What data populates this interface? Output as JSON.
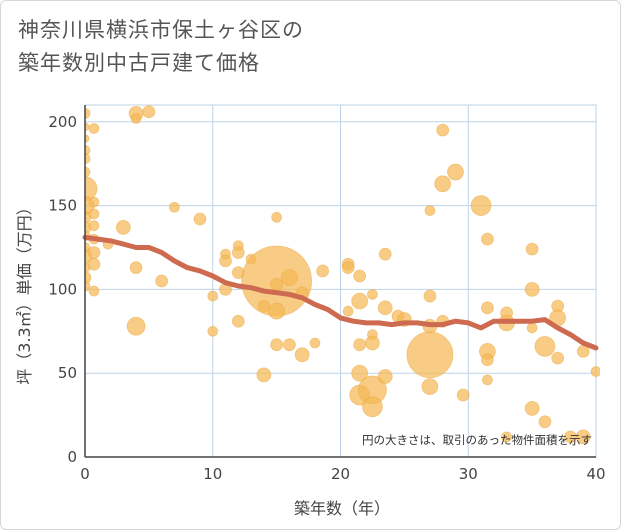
{
  "chart_data": {
    "type": "scatter",
    "title_lines": [
      "神奈川県横浜市保土ヶ谷区の",
      "築年数別中古戸建て価格"
    ],
    "xlabel": "築年数（年）",
    "ylabel": "坪（3.3㎡）単価（万円）",
    "xlim": [
      0,
      40
    ],
    "ylim": [
      0,
      210
    ],
    "x_ticks": [
      0,
      10,
      20,
      30,
      40
    ],
    "y_ticks": [
      0,
      50,
      100,
      150,
      200
    ],
    "x_tick_labels": [
      "0",
      "10",
      "20",
      "30",
      "40"
    ],
    "y_tick_labels": [
      "0",
      "50",
      "100",
      "150",
      "200"
    ],
    "grid": true,
    "note": "円の大きさは、取引のあった物件面積を示す",
    "colors": {
      "bubble": "#f5b955",
      "bubble_stroke": "#e9a63a",
      "trend": "#cd6a50",
      "grid": "#bfd3e6",
      "axis": "#444444"
    },
    "series": [
      {
        "name": "取引",
        "points": [
          {
            "x": 0,
            "y": 205,
            "size": 5
          },
          {
            "x": 0,
            "y": 197,
            "size": 4
          },
          {
            "x": 0,
            "y": 190,
            "size": 4
          },
          {
            "x": 0,
            "y": 183,
            "size": 5
          },
          {
            "x": 0,
            "y": 178,
            "size": 5
          },
          {
            "x": 0,
            "y": 170,
            "size": 5
          },
          {
            "x": 0,
            "y": 160,
            "size": 12
          },
          {
            "x": 0,
            "y": 150,
            "size": 9
          },
          {
            "x": 0,
            "y": 143,
            "size": 6
          },
          {
            "x": 0,
            "y": 137,
            "size": 6
          },
          {
            "x": 0,
            "y": 132,
            "size": 5
          },
          {
            "x": 0,
            "y": 125,
            "size": 5
          },
          {
            "x": 0,
            "y": 120,
            "size": 7
          },
          {
            "x": 0,
            "y": 113,
            "size": 5
          },
          {
            "x": 0,
            "y": 107,
            "size": 6
          },
          {
            "x": 0,
            "y": 102,
            "size": 5
          },
          {
            "x": 0.7,
            "y": 196,
            "size": 5
          },
          {
            "x": 0.7,
            "y": 152,
            "size": 5
          },
          {
            "x": 0.7,
            "y": 145,
            "size": 5
          },
          {
            "x": 0.7,
            "y": 138,
            "size": 5
          },
          {
            "x": 0.7,
            "y": 130,
            "size": 5
          },
          {
            "x": 0.7,
            "y": 122,
            "size": 6
          },
          {
            "x": 0.7,
            "y": 115,
            "size": 6
          },
          {
            "x": 0.7,
            "y": 99,
            "size": 5
          },
          {
            "x": 1.8,
            "y": 127,
            "size": 5
          },
          {
            "x": 3,
            "y": 137,
            "size": 7
          },
          {
            "x": 4,
            "y": 205,
            "size": 7
          },
          {
            "x": 4,
            "y": 202,
            "size": 5
          },
          {
            "x": 5,
            "y": 206,
            "size": 6
          },
          {
            "x": 4,
            "y": 113,
            "size": 6
          },
          {
            "x": 4,
            "y": 78,
            "size": 9
          },
          {
            "x": 6,
            "y": 105,
            "size": 6
          },
          {
            "x": 7,
            "y": 149,
            "size": 5
          },
          {
            "x": 9,
            "y": 142,
            "size": 6
          },
          {
            "x": 10,
            "y": 96,
            "size": 5
          },
          {
            "x": 10,
            "y": 75,
            "size": 5
          },
          {
            "x": 11,
            "y": 121,
            "size": 5
          },
          {
            "x": 11,
            "y": 117,
            "size": 6
          },
          {
            "x": 11,
            "y": 100,
            "size": 6
          },
          {
            "x": 12,
            "y": 126,
            "size": 5
          },
          {
            "x": 12,
            "y": 122,
            "size": 6
          },
          {
            "x": 12,
            "y": 110,
            "size": 6
          },
          {
            "x": 12,
            "y": 81,
            "size": 6
          },
          {
            "x": 13,
            "y": 118,
            "size": 5
          },
          {
            "x": 14,
            "y": 90,
            "size": 6
          },
          {
            "x": 14,
            "y": 49,
            "size": 7
          },
          {
            "x": 15,
            "y": 143,
            "size": 5
          },
          {
            "x": 15,
            "y": 105,
            "size": 35
          },
          {
            "x": 15,
            "y": 103,
            "size": 6
          },
          {
            "x": 15,
            "y": 87,
            "size": 8
          },
          {
            "x": 15,
            "y": 67,
            "size": 6
          },
          {
            "x": 16,
            "y": 107,
            "size": 8
          },
          {
            "x": 16,
            "y": 67,
            "size": 6
          },
          {
            "x": 17,
            "y": 98,
            "size": 6
          },
          {
            "x": 17,
            "y": 61,
            "size": 7
          },
          {
            "x": 18,
            "y": 68,
            "size": 5
          },
          {
            "x": 18.6,
            "y": 111,
            "size": 6
          },
          {
            "x": 20.6,
            "y": 115,
            "size": 6
          },
          {
            "x": 20.6,
            "y": 113,
            "size": 6
          },
          {
            "x": 20.6,
            "y": 87,
            "size": 5
          },
          {
            "x": 21.5,
            "y": 108,
            "size": 6
          },
          {
            "x": 21.5,
            "y": 93,
            "size": 8
          },
          {
            "x": 21.5,
            "y": 67,
            "size": 6
          },
          {
            "x": 21.5,
            "y": 50,
            "size": 8
          },
          {
            "x": 21.5,
            "y": 37,
            "size": 10
          },
          {
            "x": 22.5,
            "y": 97,
            "size": 5
          },
          {
            "x": 22.5,
            "y": 73,
            "size": 5
          },
          {
            "x": 22.5,
            "y": 68,
            "size": 7
          },
          {
            "x": 22.5,
            "y": 40,
            "size": 14
          },
          {
            "x": 22.5,
            "y": 30,
            "size": 10
          },
          {
            "x": 23.5,
            "y": 121,
            "size": 6
          },
          {
            "x": 23.5,
            "y": 89,
            "size": 7
          },
          {
            "x": 23.5,
            "y": 48,
            "size": 7
          },
          {
            "x": 24.5,
            "y": 84,
            "size": 6
          },
          {
            "x": 25,
            "y": 82,
            "size": 7
          },
          {
            "x": 27,
            "y": 147,
            "size": 5
          },
          {
            "x": 27,
            "y": 96,
            "size": 6
          },
          {
            "x": 27,
            "y": 78,
            "size": 7
          },
          {
            "x": 27,
            "y": 61,
            "size": 23
          },
          {
            "x": 27,
            "y": 42,
            "size": 8
          },
          {
            "x": 28,
            "y": 195,
            "size": 6
          },
          {
            "x": 28,
            "y": 163,
            "size": 8
          },
          {
            "x": 28,
            "y": 81,
            "size": 6
          },
          {
            "x": 29,
            "y": 170,
            "size": 8
          },
          {
            "x": 29.6,
            "y": 37,
            "size": 6
          },
          {
            "x": 31,
            "y": 150,
            "size": 10
          },
          {
            "x": 31.5,
            "y": 130,
            "size": 6
          },
          {
            "x": 31.5,
            "y": 89,
            "size": 6
          },
          {
            "x": 31.5,
            "y": 63,
            "size": 8
          },
          {
            "x": 31.5,
            "y": 58,
            "size": 6
          },
          {
            "x": 31.5,
            "y": 46,
            "size": 5
          },
          {
            "x": 33,
            "y": 86,
            "size": 6
          },
          {
            "x": 33,
            "y": 80,
            "size": 8
          },
          {
            "x": 33,
            "y": 12,
            "size": 5
          },
          {
            "x": 35,
            "y": 124,
            "size": 6
          },
          {
            "x": 35,
            "y": 100,
            "size": 7
          },
          {
            "x": 35,
            "y": 77,
            "size": 5
          },
          {
            "x": 35,
            "y": 29,
            "size": 7
          },
          {
            "x": 36,
            "y": 66,
            "size": 10
          },
          {
            "x": 36,
            "y": 21,
            "size": 6
          },
          {
            "x": 37,
            "y": 90,
            "size": 6
          },
          {
            "x": 37,
            "y": 83,
            "size": 8
          },
          {
            "x": 37,
            "y": 59,
            "size": 6
          },
          {
            "x": 38,
            "y": 12,
            "size": 6
          },
          {
            "x": 39,
            "y": 63,
            "size": 6
          },
          {
            "x": 39,
            "y": 12,
            "size": 7
          },
          {
            "x": 40,
            "y": 51,
            "size": 5
          }
        ]
      },
      {
        "name": "平均",
        "line": [
          {
            "x": 0,
            "y": 131
          },
          {
            "x": 1,
            "y": 130
          },
          {
            "x": 2,
            "y": 129
          },
          {
            "x": 3,
            "y": 127
          },
          {
            "x": 4,
            "y": 125
          },
          {
            "x": 5,
            "y": 125
          },
          {
            "x": 6,
            "y": 122
          },
          {
            "x": 7,
            "y": 117
          },
          {
            "x": 8,
            "y": 113
          },
          {
            "x": 9,
            "y": 111
          },
          {
            "x": 10,
            "y": 108
          },
          {
            "x": 11,
            "y": 104
          },
          {
            "x": 12,
            "y": 102
          },
          {
            "x": 13,
            "y": 101
          },
          {
            "x": 14,
            "y": 99
          },
          {
            "x": 15,
            "y": 98
          },
          {
            "x": 16,
            "y": 97
          },
          {
            "x": 17,
            "y": 95
          },
          {
            "x": 18,
            "y": 91
          },
          {
            "x": 19,
            "y": 88
          },
          {
            "x": 20,
            "y": 83
          },
          {
            "x": 21,
            "y": 81
          },
          {
            "x": 22,
            "y": 80
          },
          {
            "x": 23,
            "y": 80
          },
          {
            "x": 24,
            "y": 79
          },
          {
            "x": 25,
            "y": 80
          },
          {
            "x": 26,
            "y": 80
          },
          {
            "x": 27,
            "y": 79
          },
          {
            "x": 28,
            "y": 79
          },
          {
            "x": 29,
            "y": 81
          },
          {
            "x": 30,
            "y": 80
          },
          {
            "x": 31,
            "y": 77
          },
          {
            "x": 32,
            "y": 81
          },
          {
            "x": 33,
            "y": 81
          },
          {
            "x": 34,
            "y": 81
          },
          {
            "x": 35,
            "y": 81
          },
          {
            "x": 36,
            "y": 82
          },
          {
            "x": 37,
            "y": 77
          },
          {
            "x": 38,
            "y": 73
          },
          {
            "x": 39,
            "y": 68
          },
          {
            "x": 40,
            "y": 65
          }
        ]
      }
    ]
  }
}
